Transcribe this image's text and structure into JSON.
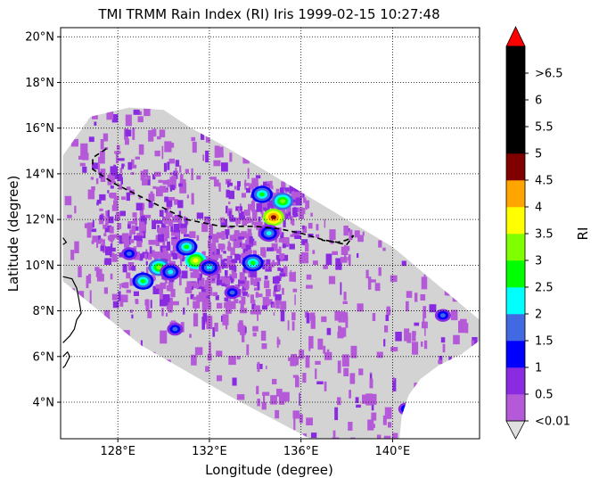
{
  "chart_data": {
    "type": "heatmap",
    "title": "TMI TRMM Rain Index (RI) Iris 1999-02-15 10:27:48",
    "xlabel": "Longitude (degree)",
    "ylabel": "Latitude (degree)",
    "xlim": [
      125.5,
      143.8
    ],
    "ylim": [
      2.4,
      20.4
    ],
    "x_ticks": [
      {
        "value": 128,
        "label": "128°E"
      },
      {
        "value": 132,
        "label": "132°E"
      },
      {
        "value": 136,
        "label": "136°E"
      },
      {
        "value": 140,
        "label": "140°E"
      }
    ],
    "y_ticks": [
      {
        "value": 4,
        "label": "4°N"
      },
      {
        "value": 6,
        "label": "6°N"
      },
      {
        "value": 8,
        "label": "8°N"
      },
      {
        "value": 10,
        "label": "10°N"
      },
      {
        "value": 12,
        "label": "12°N"
      },
      {
        "value": 14,
        "label": "14°N"
      },
      {
        "value": 16,
        "label": "16°N"
      },
      {
        "value": 18,
        "label": "18°N"
      },
      {
        "value": 20,
        "label": "20°N"
      }
    ],
    "grid": "dotted",
    "colorbar": {
      "label": "RI",
      "bins": [
        {
          "label": "<0.01",
          "color": "#b45ad8"
        },
        {
          "label": "0.5",
          "color": "#8a2be2"
        },
        {
          "label": "1",
          "color": "#0000ff"
        },
        {
          "label": "1.5",
          "color": "#4169e1"
        },
        {
          "label": "2",
          "color": "#00ffff"
        },
        {
          "label": "2.5",
          "color": "#00ff00"
        },
        {
          "label": "3",
          "color": "#7fff00"
        },
        {
          "label": "3.5",
          "color": "#ffff00"
        },
        {
          "label": "4",
          "color": "#ffa500"
        },
        {
          "label": "4.5",
          "color": "#800000"
        },
        {
          "label": "5",
          "color": "#000000"
        },
        {
          "label": "5.5",
          "color": "#000000"
        },
        {
          "label": "6",
          "color": "#000000"
        },
        {
          "label": ">6.5",
          "color": "#000000"
        }
      ],
      "under_color": "#e0e0e0",
      "over_color": "#ff0000"
    },
    "swath": {
      "background_color": "#d3d3d3",
      "outline": [
        [
          125.6,
          14.8
        ],
        [
          126.8,
          16.5
        ],
        [
          128.5,
          16.9
        ],
        [
          130.0,
          16.8
        ],
        [
          131.2,
          16.0
        ],
        [
          132.5,
          15.3
        ],
        [
          136.0,
          13.2
        ],
        [
          140.0,
          10.8
        ],
        [
          143.8,
          7.6
        ],
        [
          143.8,
          6.7
        ],
        [
          143.0,
          6.1
        ],
        [
          142.0,
          5.6
        ],
        [
          141.2,
          5.0
        ],
        [
          140.7,
          4.3
        ],
        [
          140.4,
          3.4
        ],
        [
          140.3,
          2.4
        ],
        [
          136.4,
          2.4
        ],
        [
          133.0,
          4.2
        ],
        [
          129.0,
          6.5
        ],
        [
          125.6,
          9.3
        ]
      ]
    },
    "rain_clusters": [
      {
        "lon": 129.8,
        "lat": 9.9,
        "ri": 3.0
      },
      {
        "lon": 129.1,
        "lat": 9.3,
        "ri": 2.5
      },
      {
        "lon": 130.3,
        "lat": 9.7,
        "ri": 2.0
      },
      {
        "lon": 131.4,
        "lat": 10.2,
        "ri": 3.5
      },
      {
        "lon": 131.0,
        "lat": 10.8,
        "ri": 2.5
      },
      {
        "lon": 132.0,
        "lat": 9.9,
        "ri": 2.0
      },
      {
        "lon": 128.5,
        "lat": 10.5,
        "ri": 1.5
      },
      {
        "lon": 134.8,
        "lat": 12.1,
        "ri": 4.5
      },
      {
        "lon": 134.3,
        "lat": 13.1,
        "ri": 2.5
      },
      {
        "lon": 135.2,
        "lat": 12.8,
        "ri": 3.0
      },
      {
        "lon": 134.6,
        "lat": 11.4,
        "ri": 2.0
      },
      {
        "lon": 133.9,
        "lat": 10.1,
        "ri": 2.5
      },
      {
        "lon": 133.0,
        "lat": 8.8,
        "ri": 1.5
      },
      {
        "lon": 130.5,
        "lat": 7.2,
        "ri": 1.5
      },
      {
        "lon": 140.6,
        "lat": 3.7,
        "ri": 1.5
      },
      {
        "lon": 142.2,
        "lat": 7.8,
        "ri": 1.5
      }
    ],
    "dashed_track": [
      [
        127.5,
        15.1
      ],
      [
        126.9,
        14.7
      ],
      [
        126.9,
        14.2
      ],
      [
        127.8,
        13.6
      ],
      [
        128.8,
        13.1
      ],
      [
        130.0,
        12.5
      ],
      [
        131.0,
        12.0
      ],
      [
        132.5,
        11.7
      ],
      [
        134.0,
        11.7
      ],
      [
        135.0,
        11.6
      ],
      [
        136.0,
        11.4
      ],
      [
        137.0,
        11.1
      ],
      [
        137.6,
        11.0
      ],
      [
        138.0,
        11.1
      ],
      [
        138.3,
        11.3
      ],
      [
        138.0,
        10.9
      ],
      [
        137.5,
        11.0
      ],
      [
        136.9,
        11.1
      ]
    ],
    "coastlines": [
      [
        [
          125.6,
          11.2
        ],
        [
          125.75,
          11.0
        ],
        [
          125.6,
          10.9
        ]
      ],
      [
        [
          125.6,
          9.5
        ],
        [
          126.0,
          9.4
        ],
        [
          126.2,
          9.0
        ],
        [
          126.3,
          8.5
        ],
        [
          126.4,
          7.9
        ],
        [
          126.2,
          7.6
        ],
        [
          126.1,
          7.2
        ],
        [
          125.9,
          6.9
        ],
        [
          125.6,
          6.6
        ]
      ],
      [
        [
          125.6,
          6.0
        ],
        [
          125.8,
          6.2
        ],
        [
          125.9,
          6.0
        ],
        [
          125.7,
          5.6
        ],
        [
          125.6,
          5.5
        ]
      ]
    ]
  }
}
